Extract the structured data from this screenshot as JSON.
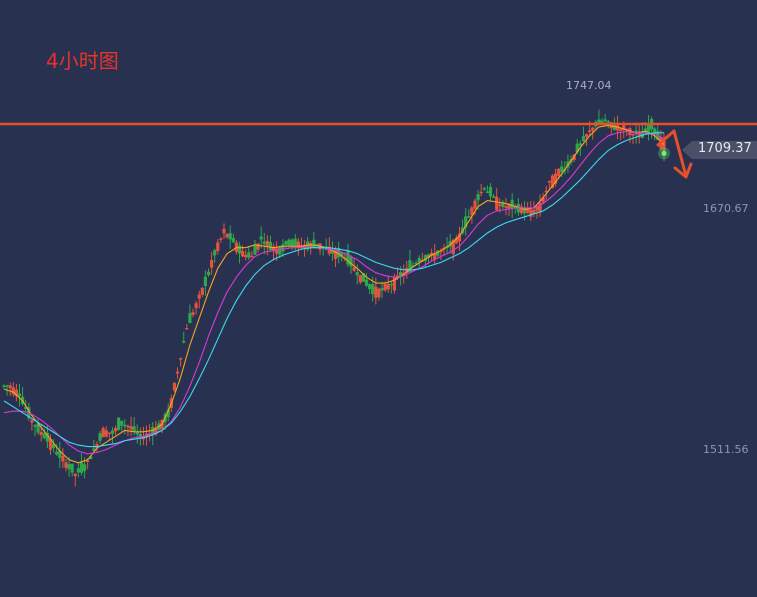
{
  "chart_data": {
    "type": "candlestick",
    "timeframe_label": "4小时图",
    "current_price": "1709.37",
    "high_label": "1747.04",
    "price_axis_labels": [
      "1670.67",
      "1511.56"
    ],
    "resistance_level": 1728,
    "ylim": [
      1432,
      1785
    ],
    "colors": {
      "up": "#e4533e",
      "down": "#2fa84a",
      "ma_fast": "#f5a623",
      "ma_mid": "#d63ad6",
      "ma_slow": "#3dd8f0",
      "resistance": "#e8502b",
      "arrow": "#e8502b"
    },
    "series": [
      {
        "name": "price",
        "close": [
          1550,
          1545,
          1530,
          1520,
          1515,
          1505,
          1498,
          1490,
          1495,
          1506,
          1520,
          1518,
          1525,
          1522,
          1515,
          1518,
          1522,
          1530,
          1560,
          1590,
          1605,
          1620,
          1640,
          1655,
          1648,
          1640,
          1638,
          1650,
          1645,
          1642,
          1648,
          1646,
          1645,
          1647,
          1643,
          1640,
          1638,
          1630,
          1622,
          1615,
          1615,
          1620,
          1625,
          1630,
          1636,
          1638,
          1640,
          1644,
          1648,
          1660,
          1675,
          1685,
          1678,
          1672,
          1672,
          1670,
          1668,
          1672,
          1688,
          1695,
          1700,
          1710,
          1720,
          1728,
          1730,
          1726,
          1725,
          1722,
          1720,
          1726,
          1717,
          1708
        ]
      },
      {
        "name": "MA fast",
        "values": [
          1548,
          1546,
          1540,
          1530,
          1522,
          1514,
          1506,
          1500,
          1498,
          1500,
          1508,
          1512,
          1516,
          1520,
          1519,
          1519,
          1520,
          1524,
          1538,
          1556,
          1578,
          1596,
          1614,
          1630,
          1640,
          1644,
          1644,
          1646,
          1645,
          1644,
          1645,
          1645,
          1645,
          1646,
          1645,
          1643,
          1640,
          1635,
          1630,
          1624,
          1620,
          1620,
          1622,
          1626,
          1631,
          1635,
          1639,
          1642,
          1646,
          1652,
          1662,
          1672,
          1676,
          1675,
          1674,
          1672,
          1670,
          1671,
          1678,
          1686,
          1694,
          1703,
          1712,
          1720,
          1726,
          1727,
          1726,
          1724,
          1722,
          1723,
          1720,
          1714
        ]
      },
      {
        "name": "MA mid",
        "values": [
          1532,
          1533,
          1533,
          1531,
          1527,
          1522,
          1516,
          1510,
          1506,
          1504,
          1505,
          1507,
          1510,
          1513,
          1515,
          1516,
          1518,
          1520,
          1526,
          1536,
          1550,
          1566,
          1584,
          1600,
          1614,
          1624,
          1632,
          1638,
          1641,
          1642,
          1643,
          1644,
          1644,
          1644,
          1644,
          1643,
          1642,
          1639,
          1636,
          1631,
          1627,
          1625,
          1624,
          1625,
          1628,
          1631,
          1635,
          1638,
          1641,
          1645,
          1652,
          1660,
          1666,
          1669,
          1670,
          1671,
          1671,
          1671,
          1674,
          1679,
          1685,
          1692,
          1700,
          1708,
          1715,
          1720,
          1722,
          1723,
          1722,
          1722,
          1721,
          1718
        ]
      },
      {
        "name": "MA slow",
        "values": [
          1540,
          1536,
          1532,
          1528,
          1524,
          1520,
          1516,
          1512,
          1510,
          1509,
          1509,
          1510,
          1511,
          1513,
          1514,
          1515,
          1517,
          1520,
          1525,
          1533,
          1543,
          1555,
          1568,
          1582,
          1596,
          1608,
          1618,
          1626,
          1632,
          1636,
          1639,
          1641,
          1643,
          1644,
          1644,
          1644,
          1643,
          1642,
          1640,
          1637,
          1634,
          1632,
          1630,
          1629,
          1629,
          1630,
          1632,
          1634,
          1637,
          1640,
          1644,
          1649,
          1654,
          1658,
          1661,
          1663,
          1665,
          1667,
          1669,
          1673,
          1678,
          1684,
          1690,
          1697,
          1704,
          1710,
          1714,
          1717,
          1719,
          1721,
          1722,
          1722
        ]
      }
    ]
  }
}
